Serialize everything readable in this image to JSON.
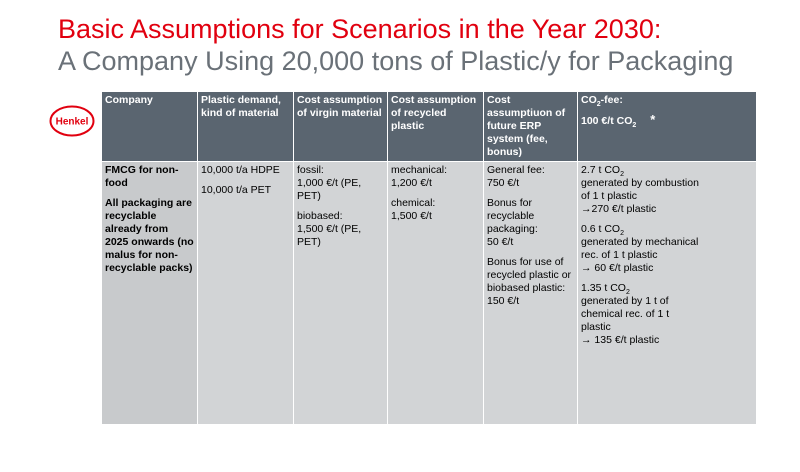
{
  "title": {
    "line1": "Basic Assumptions for Scenarios in the Year 2030:",
    "line2": "A Company Using 20,000 tons of Plastic/y for Packaging"
  },
  "logo": {
    "text": "Henkel",
    "color": "#e1000f"
  },
  "table": {
    "headers": {
      "company": "Company",
      "plastic_demand": "Plastic demand, kind of material",
      "cost_virgin": "Cost assumption of virgin material",
      "cost_recycled": "Cost assumption of recycled plastic",
      "cost_erp": "Cost assumptiuon of future ERP system (fee, bonus)",
      "co2_fee_prefix": "CO",
      "co2_fee_sub": "2",
      "co2_fee_suffix": "-fee:",
      "co2_fee_value_prefix": "100 €/t CO",
      "co2_fee_value_sub": "2",
      "co2_fee_value_suffix": "*"
    },
    "row": {
      "company_line1": "FMCG for non-food",
      "company_line2": "All packaging are recyclable already from 2025 onwards (no malus for non-recyclable packs)",
      "demand_hdpe": "10,000 t/a HDPE",
      "demand_pet": "10,000 t/a PET",
      "virgin_fossil_label": "fossil:",
      "virgin_fossil_value": "1,000 €/t (PE, PET)",
      "virgin_bio_label": "biobased:",
      "virgin_bio_value": "1,500 €/t (PE, PET)",
      "rec_mech_label": "mechanical:",
      "rec_mech_value": "1,200 €/t",
      "rec_chem_label": "chemical:",
      "rec_chem_value": "1,500 €/t",
      "erp_general_label": "General fee:",
      "erp_general_value": "750 €/t",
      "erp_bonus_label": "Bonus for recyclable packaging:",
      "erp_bonus_value": "50 €/t",
      "erp_bonus2_label": "Bonus for use of recycled plastic or biobased plastic:",
      "erp_bonus2_value": "150 €/t",
      "co2_a_amount": "2.7 t CO",
      "co2_a_sub": "2",
      "co2_a_text": "generated by combustion of  1 t plastic",
      "co2_a_result": "270 €/t plastic",
      "co2_b_amount": "0.6 t CO",
      "co2_b_sub": "2",
      "co2_b_text": "generated by mechanical  rec. of 1 t plastic",
      "co2_b_result": " 60 €/t plastic",
      "co2_c_amount": "1.35 t CO",
      "co2_c_sub": "2",
      "co2_c_text": "generated by 1 t of chemical rec. of 1 t plastic",
      "co2_c_result": " 135 €/t plastic",
      "arrow": "→"
    }
  }
}
